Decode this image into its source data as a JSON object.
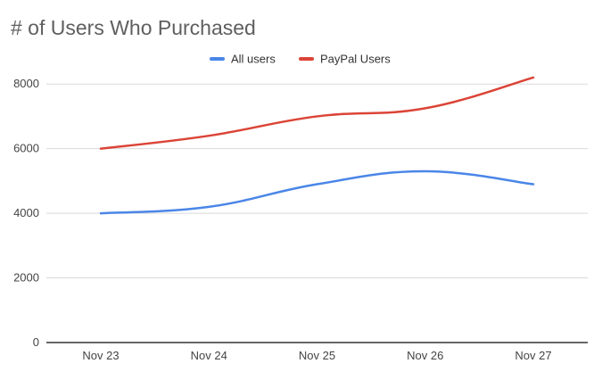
{
  "chart_data": {
    "type": "line",
    "title": "# of Users Who Purchased",
    "categories": [
      "Nov 23",
      "Nov 24",
      "Nov 25",
      "Nov 26",
      "Nov 27"
    ],
    "series": [
      {
        "name": "All users",
        "color": "#4a86e8",
        "values": [
          4000,
          4200,
          4900,
          5300,
          4900
        ]
      },
      {
        "name": "PayPal Users",
        "color": "#db4437",
        "values": [
          6000,
          6400,
          7000,
          7250,
          8200
        ]
      }
    ],
    "yticks": [
      0,
      2000,
      4000,
      6000,
      8000
    ],
    "ylim": [
      0,
      9000
    ],
    "grid": true,
    "legend_position": "top-center",
    "xlabel": "",
    "ylabel": ""
  }
}
